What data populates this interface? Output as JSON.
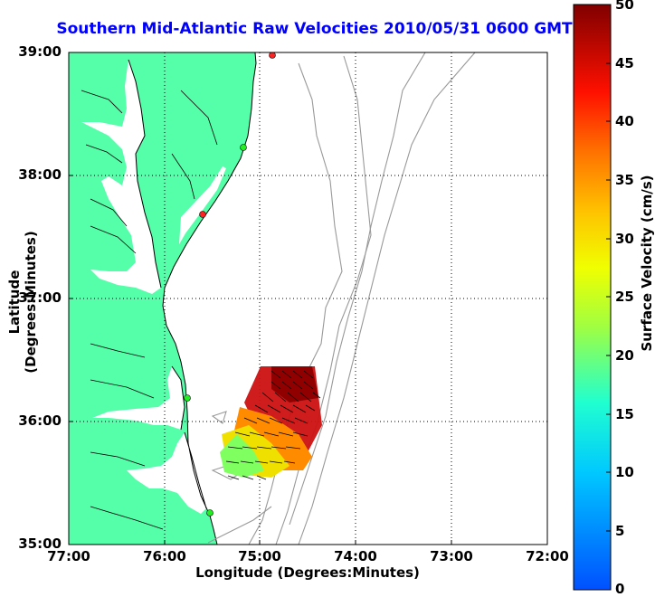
{
  "title": "Southern Mid-Atlantic Raw Velocities 2010/05/31 0600 GMT",
  "xlabel": "Longitude (Degrees:Minutes)",
  "ylabel": "Latitude (Degrees:Minutes)",
  "colorbar": {
    "label": "Surface Velocity (cm/s)",
    "ticks": [
      "50",
      "45",
      "40",
      "35",
      "30",
      "25",
      "20",
      "15",
      "10",
      "5",
      "0"
    ],
    "colormap": "jet",
    "range": [
      0,
      50
    ]
  },
  "axes": {
    "x_ticks": [
      "77:00",
      "76:00",
      "75:00",
      "74:00",
      "73:00",
      "72:00"
    ],
    "y_ticks": [
      "39:00",
      "38:00",
      "37:00",
      "36:00",
      "35:00"
    ],
    "grid": "dotted"
  },
  "colors": {
    "title": "#0000ff",
    "land": "#55ffaa",
    "coastline": "#000000",
    "bathymetry": "#999999",
    "station_active": "#22ee22",
    "station_inactive": "#ff2222"
  }
}
